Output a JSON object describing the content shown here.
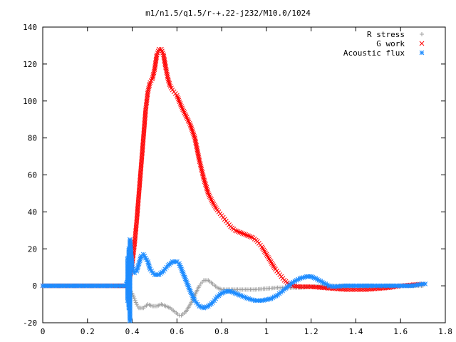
{
  "chart_data": {
    "type": "scatter",
    "title": "m1/n1.5/q1.5/r-+.22-j232/M10.0/1024",
    "xlabel": "",
    "ylabel": "",
    "xlim": [
      0,
      1.8
    ],
    "ylim": [
      -20,
      140
    ],
    "grid": false,
    "legend_position": "top-right",
    "x_ticks": [
      "0",
      "0.2",
      "0.4",
      "0.6",
      "0.8",
      "1",
      "1.2",
      "1.4",
      "1.6",
      "1.8"
    ],
    "y_ticks": [
      "-20",
      "0",
      "20",
      "40",
      "60",
      "80",
      "100",
      "120",
      "140"
    ],
    "series": [
      {
        "name": "R stress",
        "marker": "plus",
        "color": "#a0a0a0",
        "points": [
          [
            0.0,
            0
          ],
          [
            0.1,
            0
          ],
          [
            0.2,
            0
          ],
          [
            0.3,
            0
          ],
          [
            0.38,
            0
          ],
          [
            0.39,
            -2
          ],
          [
            0.4,
            -4
          ],
          [
            0.41,
            -7
          ],
          [
            0.42,
            -10
          ],
          [
            0.43,
            -12
          ],
          [
            0.45,
            -12
          ],
          [
            0.47,
            -10
          ],
          [
            0.49,
            -11
          ],
          [
            0.51,
            -11
          ],
          [
            0.53,
            -10
          ],
          [
            0.55,
            -11
          ],
          [
            0.57,
            -12
          ],
          [
            0.59,
            -14
          ],
          [
            0.61,
            -16
          ],
          [
            0.62,
            -16
          ],
          [
            0.64,
            -14
          ],
          [
            0.66,
            -10
          ],
          [
            0.68,
            -5
          ],
          [
            0.7,
            0
          ],
          [
            0.72,
            3
          ],
          [
            0.74,
            3
          ],
          [
            0.76,
            1
          ],
          [
            0.78,
            -1
          ],
          [
            0.8,
            -2
          ],
          [
            0.85,
            -2
          ],
          [
            0.9,
            -2
          ],
          [
            0.95,
            -2
          ],
          [
            1.0,
            -1.5
          ],
          [
            1.05,
            -1
          ],
          [
            1.1,
            -1
          ],
          [
            1.15,
            -1
          ],
          [
            1.2,
            -0.5
          ],
          [
            1.3,
            0
          ],
          [
            1.4,
            0
          ],
          [
            1.5,
            0
          ],
          [
            1.6,
            0
          ],
          [
            1.7,
            0
          ]
        ]
      },
      {
        "name": "G work",
        "marker": "cross",
        "color": "#ff0000",
        "points": [
          [
            0.0,
            0
          ],
          [
            0.1,
            0
          ],
          [
            0.2,
            0
          ],
          [
            0.3,
            0
          ],
          [
            0.38,
            0
          ],
          [
            0.39,
            5
          ],
          [
            0.4,
            12
          ],
          [
            0.41,
            22
          ],
          [
            0.42,
            35
          ],
          [
            0.43,
            50
          ],
          [
            0.44,
            65
          ],
          [
            0.45,
            80
          ],
          [
            0.46,
            95
          ],
          [
            0.47,
            105
          ],
          [
            0.48,
            110
          ],
          [
            0.49,
            112
          ],
          [
            0.5,
            117
          ],
          [
            0.51,
            125
          ],
          [
            0.52,
            128
          ],
          [
            0.53,
            128
          ],
          [
            0.54,
            125
          ],
          [
            0.55,
            118
          ],
          [
            0.56,
            112
          ],
          [
            0.57,
            108
          ],
          [
            0.58,
            106
          ],
          [
            0.6,
            103
          ],
          [
            0.62,
            97
          ],
          [
            0.64,
            92
          ],
          [
            0.66,
            87
          ],
          [
            0.68,
            80
          ],
          [
            0.7,
            68
          ],
          [
            0.72,
            58
          ],
          [
            0.74,
            50
          ],
          [
            0.76,
            45
          ],
          [
            0.78,
            41
          ],
          [
            0.8,
            38
          ],
          [
            0.82,
            35
          ],
          [
            0.84,
            32
          ],
          [
            0.86,
            30
          ],
          [
            0.88,
            29
          ],
          [
            0.9,
            28
          ],
          [
            0.92,
            27
          ],
          [
            0.94,
            26
          ],
          [
            0.96,
            24
          ],
          [
            0.98,
            21
          ],
          [
            1.0,
            17
          ],
          [
            1.02,
            13
          ],
          [
            1.04,
            9
          ],
          [
            1.06,
            6
          ],
          [
            1.08,
            3
          ],
          [
            1.1,
            1
          ],
          [
            1.12,
            0
          ],
          [
            1.15,
            -0.5
          ],
          [
            1.2,
            -0.5
          ],
          [
            1.25,
            -1
          ],
          [
            1.3,
            -1.5
          ],
          [
            1.35,
            -2
          ],
          [
            1.4,
            -2
          ],
          [
            1.45,
            -2
          ],
          [
            1.5,
            -1.5
          ],
          [
            1.55,
            -1
          ],
          [
            1.6,
            0
          ],
          [
            1.65,
            0.5
          ],
          [
            1.7,
            1
          ]
        ]
      },
      {
        "name": "Acoustic flux",
        "marker": "star",
        "color": "#1e8cff",
        "points": [
          [
            0.0,
            0
          ],
          [
            0.1,
            0
          ],
          [
            0.2,
            0
          ],
          [
            0.3,
            0
          ],
          [
            0.37,
            0
          ],
          [
            0.38,
            3
          ],
          [
            0.38,
            -8
          ],
          [
            0.38,
            15
          ],
          [
            0.385,
            -12
          ],
          [
            0.385,
            20
          ],
          [
            0.39,
            -19
          ],
          [
            0.39,
            25
          ],
          [
            0.395,
            18
          ],
          [
            0.4,
            10
          ],
          [
            0.41,
            7
          ],
          [
            0.42,
            8
          ],
          [
            0.43,
            12
          ],
          [
            0.44,
            16
          ],
          [
            0.45,
            17
          ],
          [
            0.46,
            15
          ],
          [
            0.47,
            13
          ],
          [
            0.48,
            9
          ],
          [
            0.5,
            6
          ],
          [
            0.52,
            6
          ],
          [
            0.54,
            8
          ],
          [
            0.56,
            11
          ],
          [
            0.58,
            13
          ],
          [
            0.6,
            13
          ],
          [
            0.61,
            12
          ],
          [
            0.62,
            9
          ],
          [
            0.64,
            3
          ],
          [
            0.66,
            -3
          ],
          [
            0.68,
            -8
          ],
          [
            0.7,
            -11
          ],
          [
            0.72,
            -12
          ],
          [
            0.74,
            -11
          ],
          [
            0.76,
            -9
          ],
          [
            0.78,
            -6
          ],
          [
            0.8,
            -4
          ],
          [
            0.82,
            -3
          ],
          [
            0.84,
            -3
          ],
          [
            0.86,
            -4
          ],
          [
            0.88,
            -5
          ],
          [
            0.9,
            -6
          ],
          [
            0.92,
            -7
          ],
          [
            0.95,
            -8
          ],
          [
            0.98,
            -8
          ],
          [
            1.0,
            -7.5
          ],
          [
            1.02,
            -7
          ],
          [
            1.05,
            -5
          ],
          [
            1.08,
            -2
          ],
          [
            1.1,
            0
          ],
          [
            1.12,
            2
          ],
          [
            1.15,
            4
          ],
          [
            1.18,
            5
          ],
          [
            1.2,
            5
          ],
          [
            1.22,
            4
          ],
          [
            1.25,
            2
          ],
          [
            1.28,
            0
          ],
          [
            1.3,
            -0.5
          ],
          [
            1.35,
            0
          ],
          [
            1.4,
            0
          ],
          [
            1.45,
            0
          ],
          [
            1.5,
            0
          ],
          [
            1.55,
            0
          ],
          [
            1.6,
            0
          ],
          [
            1.65,
            0
          ],
          [
            1.7,
            1
          ],
          [
            1.71,
            1
          ]
        ]
      }
    ]
  }
}
